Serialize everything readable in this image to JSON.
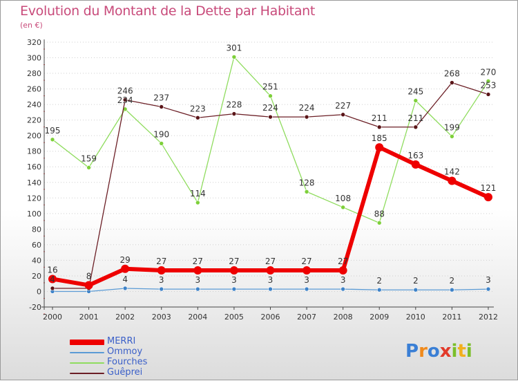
{
  "title": "Evolution du Montant de la Dette par Habitant",
  "unit": "(en €)",
  "brand": "Proxiti",
  "chart_data": {
    "type": "line",
    "x": [
      2000,
      2001,
      2002,
      2003,
      2004,
      2005,
      2006,
      2007,
      2008,
      2009,
      2010,
      2011,
      2012
    ],
    "ylim": [
      -20,
      320
    ],
    "yticks": [
      -20,
      0,
      20,
      40,
      60,
      80,
      100,
      120,
      140,
      160,
      180,
      200,
      220,
      240,
      260,
      280,
      300,
      320
    ],
    "grid": "horizontal-dotted",
    "legend_position": "bottom-left",
    "series": [
      {
        "name": "MERRI",
        "color": "#ee0000",
        "values": [
          16,
          8,
          29,
          27,
          27,
          27,
          27,
          27,
          27,
          185,
          163,
          142,
          121
        ]
      },
      {
        "name": "Ommoy",
        "color": "#5b9bd5",
        "values": [
          0,
          0,
          4,
          3,
          3,
          3,
          3,
          3,
          3,
          2,
          2,
          2,
          3
        ]
      },
      {
        "name": "Fourches",
        "color": "#8fdc5e",
        "values": [
          195,
          159,
          234,
          190,
          114,
          301,
          251,
          128,
          108,
          88,
          245,
          199,
          270
        ]
      },
      {
        "name": "Guêprei",
        "color": "#6b1e25",
        "values": [
          4,
          4,
          246,
          237,
          223,
          228,
          224,
          224,
          227,
          211,
          211,
          268,
          253
        ]
      }
    ],
    "data_labels": [
      {
        "x": 2000,
        "text": "16"
      },
      {
        "x": 2000,
        "text": "4"
      },
      {
        "x": 2001,
        "text": "8"
      },
      {
        "x": 2001,
        "text": "159"
      },
      {
        "x": 2000,
        "text": "195"
      },
      {
        "x": 2002,
        "text": "29"
      },
      {
        "x": 2002,
        "text": "4"
      },
      {
        "x": 2002,
        "text": "246"
      },
      {
        "x": 2002,
        "text": "234"
      },
      {
        "x": 2003,
        "text": "27"
      },
      {
        "x": 2003,
        "text": "3"
      },
      {
        "x": 2003,
        "text": "237"
      },
      {
        "x": 2003,
        "text": "190"
      },
      {
        "x": 2004,
        "text": "27"
      },
      {
        "x": 2004,
        "text": "3"
      },
      {
        "x": 2004,
        "text": "223"
      },
      {
        "x": 2004,
        "text": "114"
      },
      {
        "x": 2005,
        "text": "27"
      },
      {
        "x": 2005,
        "text": "3"
      },
      {
        "x": 2005,
        "text": "228"
      },
      {
        "x": 2005,
        "text": "301"
      },
      {
        "x": 2006,
        "text": "27"
      },
      {
        "x": 2006,
        "text": "3"
      },
      {
        "x": 2006,
        "text": "224"
      },
      {
        "x": 2006,
        "text": "251"
      },
      {
        "x": 2007,
        "text": "27"
      },
      {
        "x": 2007,
        "text": "3"
      },
      {
        "x": 2007,
        "text": "224"
      },
      {
        "x": 2007,
        "text": "128"
      },
      {
        "x": 2008,
        "text": "27"
      },
      {
        "x": 2008,
        "text": "3"
      },
      {
        "x": 2008,
        "text": "227"
      },
      {
        "x": 2008,
        "text": "108"
      },
      {
        "x": 2009,
        "text": "185"
      },
      {
        "x": 2009,
        "text": "2"
      },
      {
        "x": 2009,
        "text": "211"
      },
      {
        "x": 2009,
        "text": "88"
      },
      {
        "x": 2010,
        "text": "163"
      },
      {
        "x": 2010,
        "text": "2"
      },
      {
        "x": 2010,
        "text": "211"
      },
      {
        "x": 2010,
        "text": "245"
      },
      {
        "x": 2011,
        "text": "142"
      },
      {
        "x": 2011,
        "text": "2"
      },
      {
        "x": 2011,
        "text": "268"
      },
      {
        "x": 2011,
        "text": "199"
      },
      {
        "x": 2012,
        "text": "121"
      },
      {
        "x": 2012,
        "text": "3"
      },
      {
        "x": 2012,
        "text": "253"
      },
      {
        "x": 2012,
        "text": "270"
      }
    ]
  }
}
